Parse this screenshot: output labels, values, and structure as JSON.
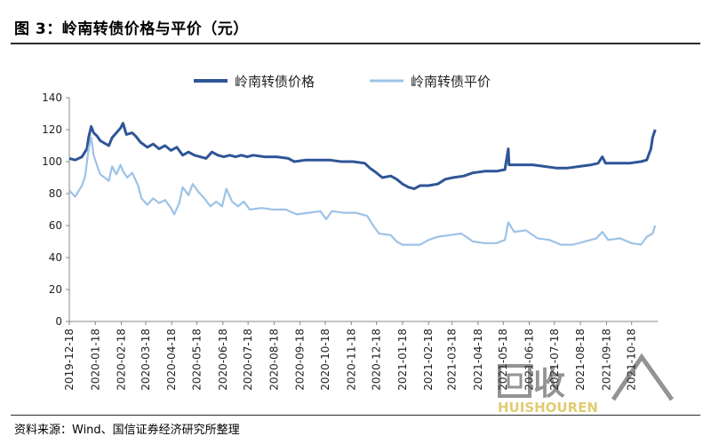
{
  "figure_title": "图 3：岭南转债价格与平价（元）",
  "source_note": "资料来源：Wind、国信证券经济研究所整理",
  "watermark": {
    "text": "回收",
    "subtext": "HUISHOUREN"
  },
  "chart_data": {
    "type": "line",
    "legend_position": "top",
    "grid": false,
    "ylim": [
      0,
      140
    ],
    "yticks": [
      0,
      20,
      40,
      60,
      80,
      100,
      120,
      140
    ],
    "xlim": [
      "2019-12-18",
      "2021-11-18"
    ],
    "xticks": [
      "2019-12-18",
      "2020-01-18",
      "2020-02-18",
      "2020-03-18",
      "2020-04-18",
      "2020-05-18",
      "2020-06-18",
      "2020-07-18",
      "2020-08-18",
      "2020-09-18",
      "2020-10-18",
      "2020-11-18",
      "2020-12-18",
      "2021-01-18",
      "2021-02-18",
      "2021-03-18",
      "2021-04-18",
      "2021-05-18",
      "2021-06-18",
      "2021-07-18",
      "2021-08-18",
      "2021-09-18",
      "2021-10-18"
    ],
    "series": [
      {
        "name": "岭南转债价格",
        "color": "#2f5597",
        "points": [
          [
            "2019-12-18",
            102
          ],
          [
            "2019-12-25",
            101
          ],
          [
            "2020-01-02",
            103
          ],
          [
            "2020-01-08",
            108
          ],
          [
            "2020-01-10",
            115
          ],
          [
            "2020-01-13",
            122
          ],
          [
            "2020-01-16",
            118
          ],
          [
            "2020-01-20",
            116
          ],
          [
            "2020-01-24",
            113
          ],
          [
            "2020-02-03",
            110
          ],
          [
            "2020-02-07",
            115
          ],
          [
            "2020-02-12",
            118
          ],
          [
            "2020-02-17",
            121
          ],
          [
            "2020-02-20",
            124
          ],
          [
            "2020-02-24",
            117
          ],
          [
            "2020-03-02",
            118
          ],
          [
            "2020-03-06",
            116
          ],
          [
            "2020-03-12",
            112
          ],
          [
            "2020-03-20",
            109
          ],
          [
            "2020-03-27",
            111
          ],
          [
            "2020-04-03",
            108
          ],
          [
            "2020-04-10",
            110
          ],
          [
            "2020-04-17",
            107
          ],
          [
            "2020-04-24",
            109
          ],
          [
            "2020-05-01",
            104
          ],
          [
            "2020-05-08",
            106
          ],
          [
            "2020-05-15",
            104
          ],
          [
            "2020-05-22",
            103
          ],
          [
            "2020-05-29",
            102
          ],
          [
            "2020-06-05",
            106
          ],
          [
            "2020-06-12",
            104
          ],
          [
            "2020-06-19",
            103
          ],
          [
            "2020-06-26",
            104
          ],
          [
            "2020-07-03",
            103
          ],
          [
            "2020-07-10",
            104
          ],
          [
            "2020-07-17",
            103
          ],
          [
            "2020-07-24",
            104
          ],
          [
            "2020-08-07",
            103
          ],
          [
            "2020-08-21",
            103
          ],
          [
            "2020-09-04",
            102
          ],
          [
            "2020-09-11",
            100
          ],
          [
            "2020-09-25",
            101
          ],
          [
            "2020-10-09",
            101
          ],
          [
            "2020-10-23",
            101
          ],
          [
            "2020-11-06",
            100
          ],
          [
            "2020-11-20",
            100
          ],
          [
            "2020-12-04",
            99
          ],
          [
            "2020-12-10",
            96
          ],
          [
            "2020-12-18",
            93
          ],
          [
            "2020-12-25",
            90
          ],
          [
            "2021-01-04",
            91
          ],
          [
            "2021-01-11",
            89
          ],
          [
            "2021-01-18",
            86
          ],
          [
            "2021-01-25",
            84
          ],
          [
            "2021-02-01",
            83
          ],
          [
            "2021-02-08",
            85
          ],
          [
            "2021-02-18",
            85
          ],
          [
            "2021-03-01",
            86
          ],
          [
            "2021-03-10",
            89
          ],
          [
            "2021-03-19",
            90
          ],
          [
            "2021-04-01",
            91
          ],
          [
            "2021-04-12",
            93
          ],
          [
            "2021-04-26",
            94
          ],
          [
            "2021-05-10",
            94
          ],
          [
            "2021-05-20",
            95
          ],
          [
            "2021-05-24",
            108
          ],
          [
            "2021-05-25",
            98
          ],
          [
            "2021-06-08",
            98
          ],
          [
            "2021-06-22",
            98
          ],
          [
            "2021-07-06",
            97
          ],
          [
            "2021-07-20",
            96
          ],
          [
            "2021-08-03",
            96
          ],
          [
            "2021-08-17",
            97
          ],
          [
            "2021-08-31",
            98
          ],
          [
            "2021-09-08",
            99
          ],
          [
            "2021-09-13",
            103
          ],
          [
            "2021-09-17",
            99
          ],
          [
            "2021-10-01",
            99
          ],
          [
            "2021-10-15",
            99
          ],
          [
            "2021-10-29",
            100
          ],
          [
            "2021-11-05",
            101
          ],
          [
            "2021-11-10",
            108
          ],
          [
            "2021-11-12",
            115
          ],
          [
            "2021-11-15",
            120
          ]
        ]
      },
      {
        "name": "岭南转债平价",
        "color": "#9dc3e6",
        "points": [
          [
            "2019-12-18",
            82
          ],
          [
            "2019-12-25",
            78
          ],
          [
            "2020-01-02",
            85
          ],
          [
            "2020-01-06",
            91
          ],
          [
            "2020-01-10",
            108
          ],
          [
            "2020-01-13",
            115
          ],
          [
            "2020-01-16",
            104
          ],
          [
            "2020-01-21",
            96
          ],
          [
            "2020-01-24",
            92
          ],
          [
            "2020-02-03",
            88
          ],
          [
            "2020-02-07",
            97
          ],
          [
            "2020-02-12",
            92
          ],
          [
            "2020-02-17",
            98
          ],
          [
            "2020-02-20",
            94
          ],
          [
            "2020-02-25",
            90
          ],
          [
            "2020-03-02",
            93
          ],
          [
            "2020-03-09",
            85
          ],
          [
            "2020-03-13",
            77
          ],
          [
            "2020-03-20",
            73
          ],
          [
            "2020-03-27",
            77
          ],
          [
            "2020-04-03",
            74
          ],
          [
            "2020-04-10",
            76
          ],
          [
            "2020-04-17",
            71
          ],
          [
            "2020-04-21",
            67
          ],
          [
            "2020-04-27",
            74
          ],
          [
            "2020-05-01",
            84
          ],
          [
            "2020-05-08",
            79
          ],
          [
            "2020-05-13",
            86
          ],
          [
            "2020-05-20",
            81
          ],
          [
            "2020-05-27",
            77
          ],
          [
            "2020-06-03",
            72
          ],
          [
            "2020-06-10",
            75
          ],
          [
            "2020-06-17",
            72
          ],
          [
            "2020-06-22",
            83
          ],
          [
            "2020-06-29",
            75
          ],
          [
            "2020-07-06",
            72
          ],
          [
            "2020-07-13",
            75
          ],
          [
            "2020-07-20",
            70
          ],
          [
            "2020-08-03",
            71
          ],
          [
            "2020-08-17",
            70
          ],
          [
            "2020-09-01",
            70
          ],
          [
            "2020-09-14",
            67
          ],
          [
            "2020-09-28",
            68
          ],
          [
            "2020-10-12",
            69
          ],
          [
            "2020-10-19",
            64
          ],
          [
            "2020-10-26",
            69
          ],
          [
            "2020-11-09",
            68
          ],
          [
            "2020-11-23",
            68
          ],
          [
            "2020-12-07",
            66
          ],
          [
            "2020-12-14",
            60
          ],
          [
            "2020-12-21",
            55
          ],
          [
            "2021-01-04",
            54
          ],
          [
            "2021-01-11",
            50
          ],
          [
            "2021-01-18",
            48
          ],
          [
            "2021-01-25",
            48
          ],
          [
            "2021-02-08",
            48
          ],
          [
            "2021-02-18",
            51
          ],
          [
            "2021-03-01",
            53
          ],
          [
            "2021-03-15",
            54
          ],
          [
            "2021-03-29",
            55
          ],
          [
            "2021-04-12",
            50
          ],
          [
            "2021-04-26",
            49
          ],
          [
            "2021-05-10",
            49
          ],
          [
            "2021-05-20",
            51
          ],
          [
            "2021-05-24",
            62
          ],
          [
            "2021-05-31",
            56
          ],
          [
            "2021-06-14",
            57
          ],
          [
            "2021-06-28",
            52
          ],
          [
            "2021-07-12",
            51
          ],
          [
            "2021-07-26",
            48
          ],
          [
            "2021-08-09",
            48
          ],
          [
            "2021-08-23",
            50
          ],
          [
            "2021-09-06",
            52
          ],
          [
            "2021-09-13",
            56
          ],
          [
            "2021-09-20",
            51
          ],
          [
            "2021-10-04",
            52
          ],
          [
            "2021-10-18",
            49
          ],
          [
            "2021-10-29",
            48
          ],
          [
            "2021-11-05",
            53
          ],
          [
            "2021-11-12",
            55
          ],
          [
            "2021-11-15",
            60
          ]
        ]
      }
    ]
  }
}
